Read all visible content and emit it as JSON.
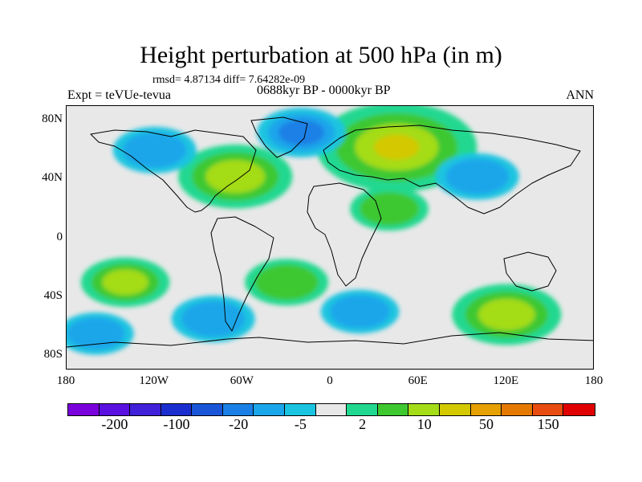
{
  "header": {
    "title": "Height perturbation at 500 hPa (in m)",
    "stats": "rmsd= 4.87134 diff= 7.64282e-09",
    "experiment": "Expt = teVUe-tevua",
    "period": "0688kyr BP - 0000kyr BP",
    "season": "ANN"
  },
  "map": {
    "lat_labels": [
      "80N",
      "40N",
      "0",
      "40S",
      "80S"
    ],
    "lat_values": [
      80,
      40,
      0,
      -40,
      -80
    ],
    "lon_labels": [
      "180",
      "120W",
      "60W",
      "0",
      "60E",
      "120E",
      "180"
    ],
    "lon_values": [
      -180,
      -120,
      -60,
      0,
      60,
      120,
      180
    ],
    "lat_range": [
      -90,
      90
    ],
    "lon_range": [
      -180,
      180
    ],
    "background_color": "#e8e8e8",
    "anomalies": [
      {
        "lon": 45,
        "lat": 62,
        "value": 40
      },
      {
        "lon": -65,
        "lat": 42,
        "value": 22
      },
      {
        "lon": 120,
        "lat": -52,
        "value": 20
      },
      {
        "lon": -140,
        "lat": -30,
        "value": 12
      },
      {
        "lon": -30,
        "lat": -30,
        "value": 10
      },
      {
        "lon": 40,
        "lat": 20,
        "value": 8
      },
      {
        "lon": -120,
        "lat": 60,
        "value": -10
      },
      {
        "lon": -20,
        "lat": 72,
        "value": -12
      },
      {
        "lon": 100,
        "lat": 42,
        "value": -10
      },
      {
        "lon": -80,
        "lat": -55,
        "value": -10
      },
      {
        "lon": 20,
        "lat": -50,
        "value": -8
      },
      {
        "lon": -160,
        "lat": -65,
        "value": -7
      }
    ]
  },
  "colorbar": {
    "colors": [
      "#7a00dc",
      "#5a10e0",
      "#4020d8",
      "#1a2ecf",
      "#1a55d8",
      "#1a80e6",
      "#1aa6ea",
      "#1ac4e0",
      "#e8e8e8",
      "#20d890",
      "#3ec830",
      "#a4dc18",
      "#d4c800",
      "#e6a000",
      "#e67a00",
      "#e84c10",
      "#e00000"
    ],
    "labels": [
      "-200",
      "-100",
      "-20",
      "-5",
      "2",
      "10",
      "50",
      "150"
    ],
    "label_boundaries": [
      1,
      3,
      5,
      7,
      9,
      11,
      13,
      15
    ]
  }
}
